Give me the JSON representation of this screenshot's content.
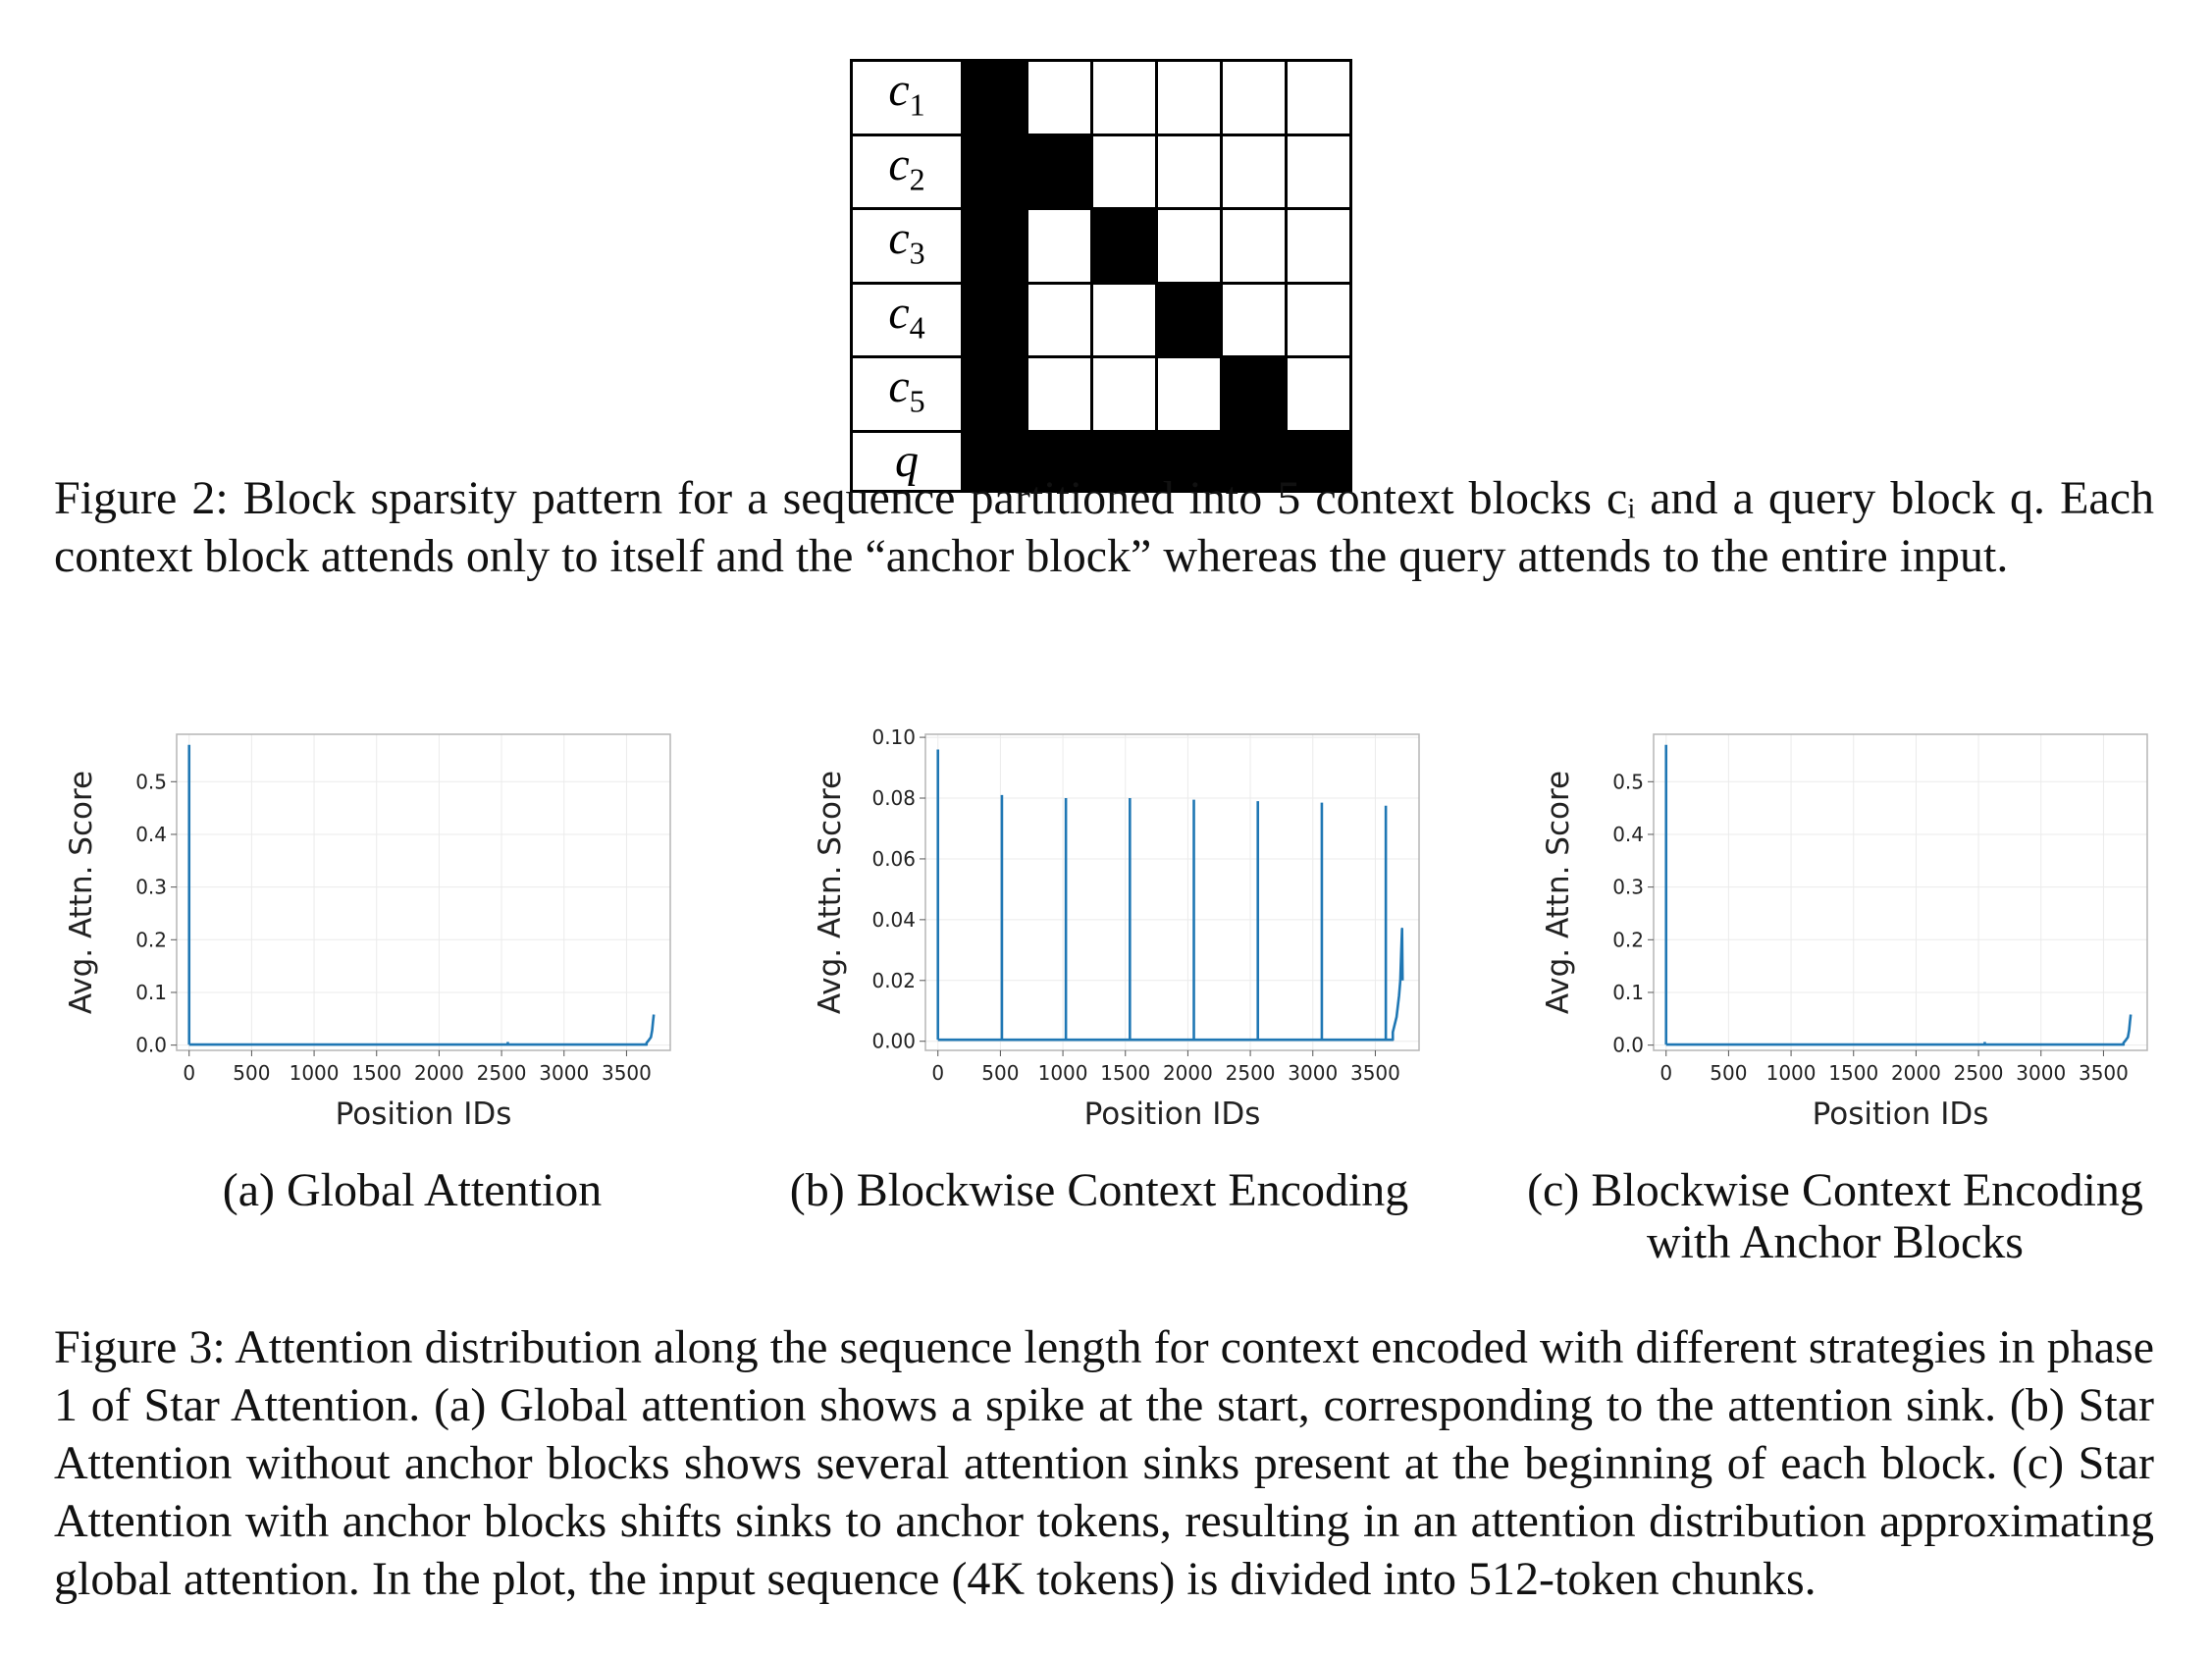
{
  "figure2": {
    "row_labels": [
      {
        "var": "c",
        "sub": "1"
      },
      {
        "var": "c",
        "sub": "2"
      },
      {
        "var": "c",
        "sub": "3"
      },
      {
        "var": "c",
        "sub": "4"
      },
      {
        "var": "c",
        "sub": "5"
      },
      {
        "var": "q",
        "sub": ""
      }
    ],
    "pattern": [
      [
        1,
        0,
        0,
        0,
        0,
        0
      ],
      [
        1,
        1,
        0,
        0,
        0,
        0
      ],
      [
        1,
        0,
        1,
        0,
        0,
        0
      ],
      [
        1,
        0,
        0,
        1,
        0,
        0
      ],
      [
        1,
        0,
        0,
        0,
        1,
        0
      ],
      [
        1,
        1,
        1,
        1,
        1,
        1
      ]
    ],
    "caption": "Figure 2: Block sparsity pattern for a sequence partitioned into 5 context blocks cᵢ and a query block q. Each context block attends only to itself and the “anchor block” whereas the query attends to the entire input."
  },
  "figure3": {
    "caption": "Figure 3: Attention distribution along the sequence length for context encoded with different strategies in phase 1 of Star Attention. (a) Global attention shows a spike at the start, corresponding to the attention sink. (b) Star Attention without anchor blocks shows several attention sinks present at the beginning of each block. (c) Star Attention with anchor blocks shifts sinks to anchor tokens, resulting in an attention distribution approximating global attention. In the plot, the input sequence (4K tokens) is divided into 512-token chunks.",
    "subcaptions": {
      "a": "(a) Global Attention",
      "b": "(b) Blockwise Context Encoding",
      "c_line1": "(c) Blockwise Context Encoding",
      "c_line2": "with Anchor Blocks"
    }
  },
  "chart_data": [
    {
      "type": "line",
      "xlabel": "Position IDs",
      "ylabel": "Avg. Attn. Score",
      "xlim": [
        -100,
        3850
      ],
      "ylim": [
        -0.01,
        0.59
      ],
      "xticks": [
        0,
        500,
        1000,
        1500,
        2000,
        2500,
        3000,
        3500
      ],
      "yticks": [
        0.0,
        0.1,
        0.2,
        0.3,
        0.4,
        0.5
      ],
      "ytick_labels": [
        "0.0",
        "0.1",
        "0.2",
        "0.3",
        "0.4",
        "0.5"
      ],
      "grid": true,
      "color": "#1f77b4",
      "baseline": 0.001,
      "x_end": 3720,
      "spikes": [
        {
          "x": 0,
          "y": 0.57
        },
        {
          "x": 2550,
          "y": 0.006
        }
      ],
      "tail": [
        [
          3660,
          0.004
        ],
        [
          3680,
          0.01
        ],
        [
          3695,
          0.015
        ],
        [
          3705,
          0.028
        ],
        [
          3712,
          0.045
        ],
        [
          3718,
          0.058
        ]
      ]
    },
    {
      "type": "line",
      "xlabel": "Position IDs",
      "ylabel": "Avg. Attn. Score",
      "xlim": [
        -100,
        3850
      ],
      "ylim": [
        -0.003,
        0.101
      ],
      "xticks": [
        0,
        500,
        1000,
        1500,
        2000,
        2500,
        3000,
        3500
      ],
      "yticks": [
        0.0,
        0.02,
        0.04,
        0.06,
        0.08,
        0.1
      ],
      "ytick_labels": [
        "0.00",
        "0.02",
        "0.04",
        "0.06",
        "0.08",
        "0.10"
      ],
      "grid": true,
      "color": "#1f77b4",
      "baseline": 0.0005,
      "x_end": 3720,
      "spikes": [
        {
          "x": 0,
          "y": 0.096
        },
        {
          "x": 512,
          "y": 0.081
        },
        {
          "x": 1024,
          "y": 0.08
        },
        {
          "x": 1536,
          "y": 0.08
        },
        {
          "x": 2048,
          "y": 0.0795
        },
        {
          "x": 2560,
          "y": 0.079
        },
        {
          "x": 3072,
          "y": 0.0785
        },
        {
          "x": 3584,
          "y": 0.0775
        }
      ],
      "tail": [
        [
          3640,
          0.003
        ],
        [
          3670,
          0.008
        ],
        [
          3690,
          0.015
        ],
        [
          3700,
          0.02
        ],
        [
          3708,
          0.03
        ],
        [
          3714,
          0.037
        ],
        [
          3718,
          0.02
        ]
      ]
    },
    {
      "type": "line",
      "xlabel": "Position IDs",
      "ylabel": "Avg. Attn. Score",
      "xlim": [
        -100,
        3850
      ],
      "ylim": [
        -0.01,
        0.59
      ],
      "xticks": [
        0,
        500,
        1000,
        1500,
        2000,
        2500,
        3000,
        3500
      ],
      "yticks": [
        0.0,
        0.1,
        0.2,
        0.3,
        0.4,
        0.5
      ],
      "ytick_labels": [
        "0.0",
        "0.1",
        "0.2",
        "0.3",
        "0.4",
        "0.5"
      ],
      "grid": true,
      "color": "#1f77b4",
      "baseline": 0.001,
      "x_end": 3720,
      "spikes": [
        {
          "x": 0,
          "y": 0.57
        },
        {
          "x": 2550,
          "y": 0.006
        }
      ],
      "tail": [
        [
          3660,
          0.004
        ],
        [
          3680,
          0.01
        ],
        [
          3695,
          0.015
        ],
        [
          3705,
          0.028
        ],
        [
          3712,
          0.045
        ],
        [
          3718,
          0.058
        ]
      ]
    }
  ]
}
